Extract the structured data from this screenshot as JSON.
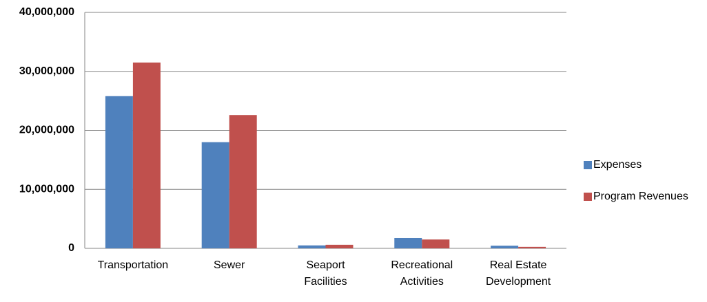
{
  "chart_data": {
    "type": "bar",
    "categories": [
      "Transportation",
      "Sewer",
      "Seaport Facilities",
      "Recreational Activities",
      "Real Estate Development"
    ],
    "series": [
      {
        "name": "Expenses",
        "color": "#4f81bd",
        "values": [
          25800000,
          18000000,
          500000,
          1750000,
          450000
        ]
      },
      {
        "name": "Program Revenues",
        "color": "#c0504d",
        "values": [
          31500000,
          22600000,
          600000,
          1500000,
          250000
        ]
      }
    ],
    "ylim": [
      0,
      40000000
    ],
    "yticks": [
      0,
      {
        "value": 10000000,
        "label": "10,000,000"
      },
      {
        "value": 20000000,
        "label": "20,000,000"
      },
      {
        "value": 30000000,
        "label": "30,000,000"
      },
      {
        "value": 40000000,
        "label": "40,000,000"
      }
    ],
    "grid": true,
    "legend": "right"
  }
}
